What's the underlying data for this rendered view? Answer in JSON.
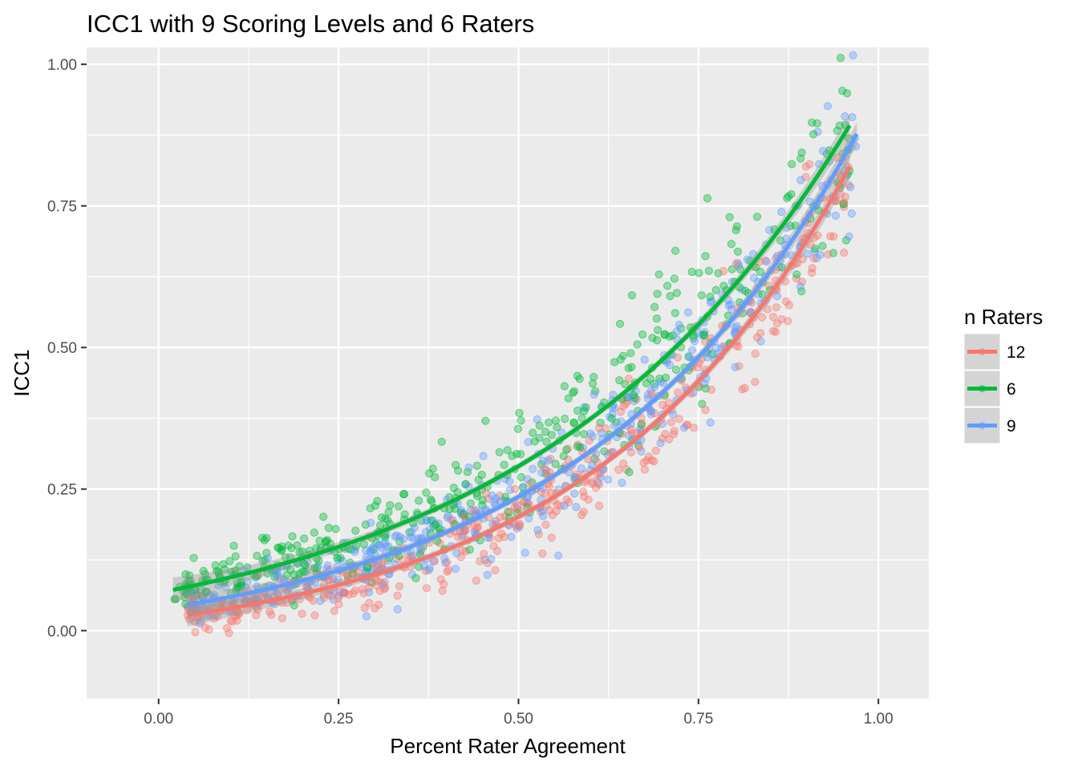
{
  "chart_data": {
    "type": "scatter",
    "title": "ICC1 with 9 Scoring Levels and 6 Raters",
    "xlabel": "Percent Rater Agreement",
    "ylabel": "ICC1",
    "xlim": [
      -0.1,
      1.07
    ],
    "ylim": [
      -0.12,
      1.03
    ],
    "x_ticks": [
      0.0,
      0.25,
      0.5,
      0.75,
      1.0
    ],
    "x_tick_labels": [
      "0.00",
      "0.25",
      "0.50",
      "0.75",
      "1.00"
    ],
    "y_ticks": [
      0.0,
      0.25,
      0.5,
      0.75,
      1.0
    ],
    "y_tick_labels": [
      "0.00",
      "0.25",
      "0.50",
      "0.75",
      "1.00"
    ],
    "grid": true,
    "legend": {
      "title": "n Raters",
      "position": "right"
    },
    "series": [
      {
        "name": "12",
        "color": "#F8766D",
        "trend": {
          "x_range": [
            0.04,
            0.96
          ],
          "a": 0.96,
          "b": 0.063
        },
        "points_sampled": {
          "x_range": [
            0.04,
            0.96
          ],
          "count": 460,
          "noise": 0.032
        }
      },
      {
        "name": "6",
        "color": "#00BA38",
        "trend": {
          "x_range": [
            0.02,
            0.96
          ],
          "a": 1.02,
          "b": 0.105
        },
        "points_sampled": {
          "x_range": [
            0.02,
            0.96
          ],
          "count": 460,
          "noise": 0.045
        }
      },
      {
        "name": "9",
        "color": "#619CFF",
        "trend": {
          "x_range": [
            0.04,
            0.97
          ],
          "a": 0.99,
          "b": 0.078
        },
        "points_sampled": {
          "x_range": [
            0.04,
            0.97
          ],
          "count": 460,
          "noise": 0.036
        }
      }
    ]
  }
}
